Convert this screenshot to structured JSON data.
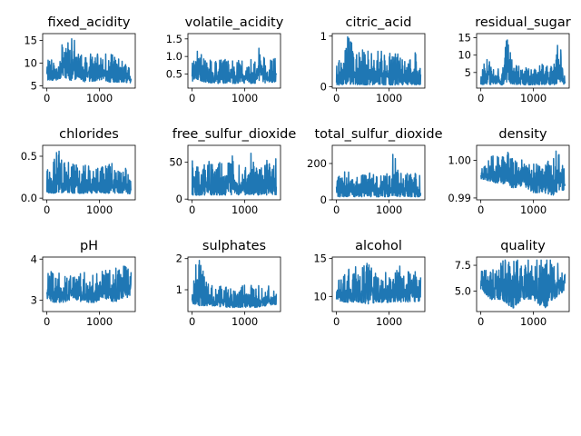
{
  "figure": {
    "line_color": "#1f77b4",
    "background": "#ffffff",
    "rows": 3,
    "cols": 4
  },
  "chart_data": [
    {
      "type": "line",
      "title": "fixed_acidity",
      "x_range": [
        0,
        1599
      ],
      "ylim": [
        4.5,
        16.5
      ],
      "xticks": [
        0,
        1000
      ],
      "yticks": [
        5,
        10,
        15
      ],
      "series": [
        {
          "x": [
            0,
            200,
            300,
            400,
            500,
            600,
            700,
            800,
            1000,
            1200,
            1400,
            1599
          ],
          "y_low": [
            6.0,
            6.0,
            6.5,
            6.0,
            5.5,
            6.5,
            5.5,
            5.5,
            6.0,
            5.5,
            5.5,
            5.5
          ],
          "y_high": [
            11.5,
            10.0,
            15.5,
            15.0,
            15.5,
            15.5,
            13.0,
            12.0,
            12.0,
            12.0,
            11.0,
            8.5
          ]
        }
      ]
    },
    {
      "type": "line",
      "title": "volatile_acidity",
      "x_range": [
        0,
        1599
      ],
      "ylim": [
        0.1,
        1.65
      ],
      "xticks": [
        0,
        1000
      ],
      "yticks": [
        0.5,
        1.0,
        1.5
      ],
      "series": [
        {
          "x": [
            0,
            100,
            200,
            400,
            600,
            800,
            1000,
            1200,
            1300,
            1400,
            1599
          ],
          "y_low": [
            0.25,
            0.3,
            0.25,
            0.2,
            0.2,
            0.2,
            0.2,
            0.2,
            0.2,
            0.2,
            0.25
          ],
          "y_high": [
            1.1,
            1.3,
            1.0,
            0.9,
            0.95,
            0.9,
            0.9,
            0.95,
            1.58,
            0.85,
            0.95
          ]
        }
      ]
    },
    {
      "type": "line",
      "title": "citric_acid",
      "x_range": [
        0,
        1599
      ],
      "ylim": [
        -0.03,
        1.05
      ],
      "xticks": [
        0,
        1000
      ],
      "yticks": [
        0,
        1
      ],
      "series": [
        {
          "x": [
            0,
            100,
            200,
            400,
            600,
            800,
            1000,
            1200,
            1400,
            1599
          ],
          "y_low": [
            0,
            0,
            0,
            0,
            0,
            0,
            0,
            0,
            0,
            0
          ],
          "y_high": [
            0.55,
            0.65,
            1.0,
            0.75,
            0.7,
            0.7,
            0.7,
            0.65,
            0.6,
            0.78
          ]
        }
      ]
    },
    {
      "type": "line",
      "title": "residual_sugar",
      "x_range": [
        0,
        1599
      ],
      "ylim": [
        0.5,
        16.2
      ],
      "xticks": [
        0,
        1000
      ],
      "yticks": [
        5,
        10,
        15
      ],
      "series": [
        {
          "x": [
            0,
            100,
            200,
            400,
            500,
            600,
            800,
            1000,
            1200,
            1400,
            1450,
            1500,
            1599
          ],
          "y_low": [
            1.3,
            1.2,
            1.2,
            1.2,
            1.2,
            1.3,
            1.2,
            1.2,
            1.2,
            1.2,
            1.2,
            1.3,
            1.4
          ],
          "y_high": [
            4.0,
            10.5,
            7.0,
            5.5,
            15.5,
            8.0,
            6.5,
            6.0,
            8.0,
            7.5,
            15.4,
            13.0,
            5.0
          ]
        }
      ]
    },
    {
      "type": "line",
      "title": "chlorides",
      "x_range": [
        0,
        1599
      ],
      "ylim": [
        -0.02,
        0.63
      ],
      "xticks": [
        0,
        1000
      ],
      "yticks": [
        0.0,
        0.5
      ],
      "series": [
        {
          "x": [
            0,
            100,
            200,
            300,
            500,
            700,
            900,
            1100,
            1300,
            1500,
            1599
          ],
          "y_low": [
            0.05,
            0.04,
            0.04,
            0.04,
            0.04,
            0.04,
            0.04,
            0.04,
            0.04,
            0.04,
            0.04
          ],
          "y_high": [
            0.35,
            0.36,
            0.61,
            0.45,
            0.42,
            0.41,
            0.35,
            0.4,
            0.42,
            0.36,
            0.25
          ]
        }
      ]
    },
    {
      "type": "line",
      "title": "free_sulfur_dioxide",
      "x_range": [
        0,
        1599
      ],
      "ylim": [
        -1,
        73
      ],
      "xticks": [
        0,
        1000
      ],
      "yticks": [
        0,
        50
      ],
      "series": [
        {
          "x": [
            0,
            200,
            400,
            600,
            800,
            1000,
            1100,
            1200,
            1400,
            1599
          ],
          "y_low": [
            3,
            3,
            3,
            3,
            3,
            3,
            3,
            3,
            3,
            3
          ],
          "y_high": [
            52,
            45,
            55,
            52,
            60,
            52,
            70,
            48,
            55,
            62
          ]
        }
      ]
    },
    {
      "type": "line",
      "title": "total_sulfur_dioxide",
      "x_range": [
        0,
        1599
      ],
      "ylim": [
        0,
        300
      ],
      "xticks": [
        0,
        1000
      ],
      "yticks": [
        0,
        200
      ],
      "series": [
        {
          "x": [
            0,
            200,
            400,
            600,
            800,
            1000,
            1080,
            1200,
            1400,
            1599
          ],
          "y_low": [
            10,
            10,
            10,
            10,
            10,
            10,
            10,
            10,
            10,
            10
          ],
          "y_high": [
            150,
            155,
            140,
            150,
            135,
            155,
            289,
            145,
            150,
            140
          ]
        }
      ]
    },
    {
      "type": "line",
      "title": "density",
      "x_range": [
        0,
        1599
      ],
      "ylim": [
        0.9895,
        1.004
      ],
      "xticks": [
        0,
        1000
      ],
      "yticks": [
        0.99,
        1.0
      ],
      "series": [
        {
          "x": [
            0,
            200,
            400,
            500,
            600,
            800,
            1000,
            1200,
            1400,
            1450,
            1500,
            1599
          ],
          "y_low": [
            0.995,
            0.994,
            0.993,
            0.994,
            0.992,
            0.993,
            0.991,
            0.991,
            0.99,
            0.991,
            0.991,
            0.992
          ],
          "y_high": [
            0.998,
            1.001,
            1.002,
            1.003,
            1.001,
            1.0,
            0.999,
            0.999,
            1.001,
            1.0035,
            1.002,
            0.998
          ]
        }
      ]
    },
    {
      "type": "line",
      "title": "pH",
      "x_range": [
        0,
        1599
      ],
      "ylim": [
        2.72,
        4.05
      ],
      "xticks": [
        0,
        1000
      ],
      "yticks": [
        3,
        4
      ],
      "series": [
        {
          "x": [
            0,
            100,
            300,
            500,
            700,
            900,
            1100,
            1300,
            1400,
            1500,
            1599
          ],
          "y_low": [
            3.0,
            2.9,
            2.9,
            3.0,
            2.9,
            2.9,
            3.0,
            2.9,
            3.0,
            3.0,
            3.1
          ],
          "y_high": [
            3.6,
            3.8,
            3.6,
            3.6,
            3.7,
            3.7,
            3.8,
            3.75,
            4.0,
            3.8,
            3.7
          ]
        }
      ]
    },
    {
      "type": "line",
      "title": "sulphates",
      "x_range": [
        0,
        1599
      ],
      "ylim": [
        0.3,
        2.05
      ],
      "xticks": [
        0,
        1000
      ],
      "yticks": [
        1,
        2
      ],
      "series": [
        {
          "x": [
            0,
            80,
            150,
            250,
            400,
            600,
            800,
            1000,
            1200,
            1400,
            1599
          ],
          "y_low": [
            0.5,
            0.45,
            0.4,
            0.45,
            0.45,
            0.4,
            0.4,
            0.4,
            0.4,
            0.45,
            0.5
          ],
          "y_high": [
            1.4,
            2.0,
            2.0,
            1.3,
            1.1,
            1.2,
            1.0,
            1.2,
            1.1,
            1.2,
            0.9
          ]
        }
      ]
    },
    {
      "type": "line",
      "title": "alcohol",
      "x_range": [
        0,
        1599
      ],
      "ylim": [
        8.0,
        15.2
      ],
      "xticks": [
        0,
        1000
      ],
      "yticks": [
        10,
        15
      ],
      "series": [
        {
          "x": [
            0,
            200,
            400,
            600,
            800,
            1000,
            1200,
            1400,
            1599
          ],
          "y_low": [
            9.2,
            9.0,
            9.0,
            8.7,
            9.0,
            9.0,
            9.0,
            9.0,
            9.2
          ],
          "y_high": [
            12.5,
            13.5,
            14.0,
            14.9,
            13.5,
            13.0,
            14.0,
            13.5,
            13.0
          ]
        }
      ]
    },
    {
      "type": "line",
      "title": "quality",
      "x_range": [
        0,
        1599
      ],
      "ylim": [
        3.0,
        8.3
      ],
      "xticks": [
        0,
        1000
      ],
      "yticks": [
        5.0,
        7.5
      ],
      "series": [
        {
          "x": [
            0,
            200,
            400,
            600,
            800,
            1000,
            1200,
            1400,
            1599
          ],
          "y_low": [
            5,
            4,
            4,
            3,
            4,
            4,
            3,
            4,
            5
          ],
          "y_high": [
            7,
            7,
            8,
            8,
            8,
            8,
            8,
            8,
            7
          ]
        }
      ]
    }
  ]
}
